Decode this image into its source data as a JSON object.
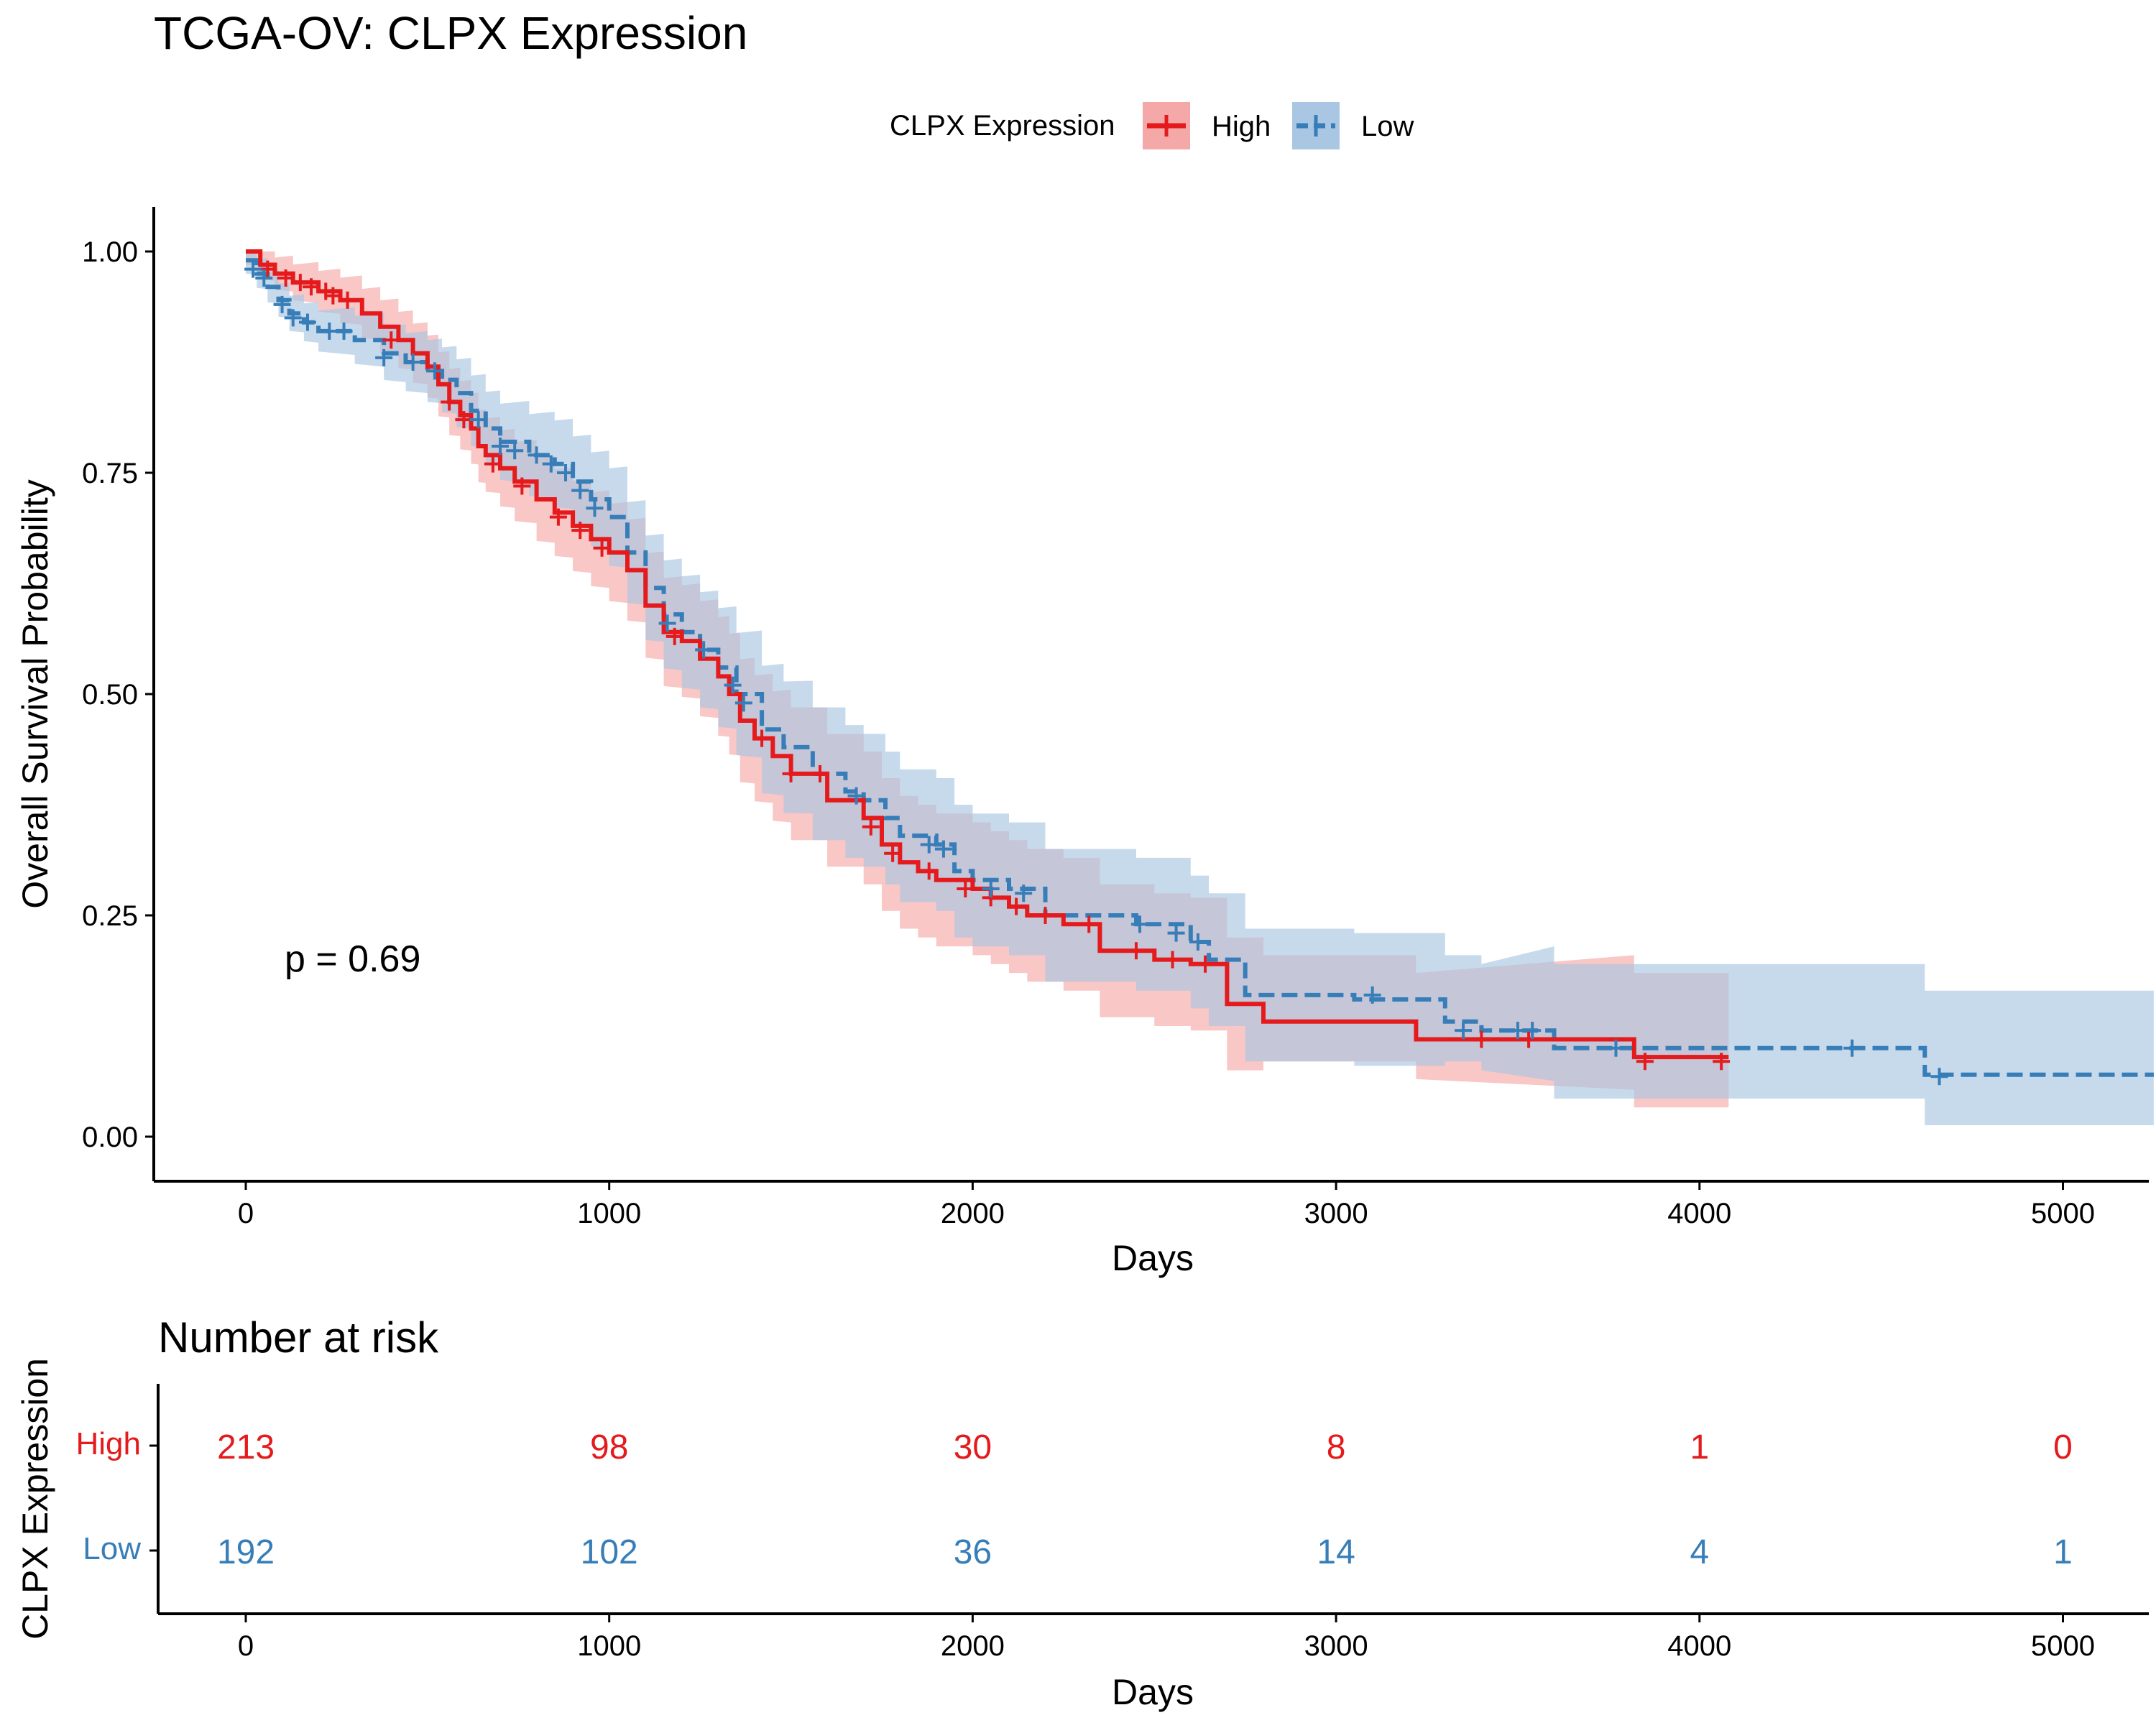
{
  "colors": {
    "high": "#E41A1C",
    "low": "#377EB8",
    "high_band": "#F4A9A8",
    "low_band": "#A9C6E2",
    "axis": "#000000",
    "text": "#000000"
  },
  "chart_data": {
    "type": "line",
    "chart_kind": "kaplan-meier",
    "title": "TCGA-OV: CLPX Expression",
    "xlabel": "Days",
    "ylabel": "Overall Survival Probability",
    "xlim": [
      -250,
      5250
    ],
    "ylim": [
      -0.05,
      1.05
    ],
    "x_ticks": [
      0,
      1000,
      2000,
      3000,
      4000,
      5000
    ],
    "x_tick_labels": [
      "0",
      "1000",
      "2000",
      "3000",
      "4000",
      "5000"
    ],
    "y_ticks": [
      0,
      0.25,
      0.5,
      0.75,
      1.0
    ],
    "y_tick_labels": [
      "0.00",
      "0.25",
      "0.50",
      "0.75",
      "1.00"
    ],
    "grid": false,
    "legend": {
      "title": "CLPX Expression",
      "position": "top",
      "entries": [
        "High",
        "Low"
      ]
    },
    "annotation": "p = 0.69",
    "annotation_pos": {
      "x": 100,
      "y": 0.2
    },
    "series": [
      {
        "name": "High",
        "color": "#E41A1C",
        "line": "solid",
        "steps": [
          [
            0,
            1.0
          ],
          [
            40,
            0.985
          ],
          [
            80,
            0.975
          ],
          [
            130,
            0.965
          ],
          [
            200,
            0.955
          ],
          [
            260,
            0.945
          ],
          [
            320,
            0.93
          ],
          [
            370,
            0.915
          ],
          [
            420,
            0.9
          ],
          [
            460,
            0.885
          ],
          [
            500,
            0.87
          ],
          [
            530,
            0.85
          ],
          [
            560,
            0.83
          ],
          [
            590,
            0.815
          ],
          [
            620,
            0.8
          ],
          [
            640,
            0.78
          ],
          [
            660,
            0.77
          ],
          [
            700,
            0.755
          ],
          [
            740,
            0.74
          ],
          [
            800,
            0.72
          ],
          [
            850,
            0.705
          ],
          [
            900,
            0.69
          ],
          [
            950,
            0.675
          ],
          [
            1000,
            0.66
          ],
          [
            1050,
            0.64
          ],
          [
            1100,
            0.6
          ],
          [
            1150,
            0.57
          ],
          [
            1200,
            0.56
          ],
          [
            1250,
            0.54
          ],
          [
            1300,
            0.52
          ],
          [
            1330,
            0.5
          ],
          [
            1360,
            0.47
          ],
          [
            1400,
            0.45
          ],
          [
            1450,
            0.43
          ],
          [
            1500,
            0.41
          ],
          [
            1600,
            0.38
          ],
          [
            1700,
            0.36
          ],
          [
            1750,
            0.33
          ],
          [
            1800,
            0.31
          ],
          [
            1850,
            0.3
          ],
          [
            1900,
            0.29
          ],
          [
            2000,
            0.28
          ],
          [
            2050,
            0.27
          ],
          [
            2100,
            0.26
          ],
          [
            2150,
            0.25
          ],
          [
            2250,
            0.24
          ],
          [
            2350,
            0.21
          ],
          [
            2500,
            0.2
          ],
          [
            2600,
            0.195
          ],
          [
            2700,
            0.15
          ],
          [
            2800,
            0.13
          ],
          [
            3220,
            0.11
          ],
          [
            3820,
            0.09
          ],
          [
            4080,
            0.09
          ]
        ],
        "censors": [
          [
            60,
            0.98
          ],
          [
            110,
            0.97
          ],
          [
            150,
            0.965
          ],
          [
            180,
            0.96
          ],
          [
            220,
            0.955
          ],
          [
            240,
            0.95
          ],
          [
            280,
            0.945
          ],
          [
            400,
            0.9
          ],
          [
            560,
            0.83
          ],
          [
            600,
            0.81
          ],
          [
            680,
            0.76
          ],
          [
            760,
            0.735
          ],
          [
            860,
            0.7
          ],
          [
            920,
            0.685
          ],
          [
            980,
            0.665
          ],
          [
            1180,
            0.565
          ],
          [
            1420,
            0.45
          ],
          [
            1500,
            0.41
          ],
          [
            1580,
            0.41
          ],
          [
            1720,
            0.35
          ],
          [
            1780,
            0.32
          ],
          [
            1880,
            0.3
          ],
          [
            1980,
            0.28
          ],
          [
            2050,
            0.27
          ],
          [
            2120,
            0.26
          ],
          [
            2200,
            0.25
          ],
          [
            2320,
            0.24
          ],
          [
            2450,
            0.21
          ],
          [
            2550,
            0.2
          ],
          [
            2640,
            0.195
          ],
          [
            3400,
            0.11
          ],
          [
            3530,
            0.11
          ],
          [
            3850,
            0.085
          ],
          [
            4060,
            0.085
          ]
        ]
      },
      {
        "name": "Low",
        "color": "#377EB8",
        "line": "dashed",
        "steps": [
          [
            0,
            0.99
          ],
          [
            30,
            0.975
          ],
          [
            60,
            0.96
          ],
          [
            90,
            0.945
          ],
          [
            120,
            0.93
          ],
          [
            160,
            0.92
          ],
          [
            200,
            0.91
          ],
          [
            300,
            0.9
          ],
          [
            380,
            0.885
          ],
          [
            440,
            0.875
          ],
          [
            500,
            0.865
          ],
          [
            540,
            0.855
          ],
          [
            580,
            0.84
          ],
          [
            620,
            0.82
          ],
          [
            660,
            0.8
          ],
          [
            700,
            0.785
          ],
          [
            780,
            0.77
          ],
          [
            850,
            0.76
          ],
          [
            900,
            0.74
          ],
          [
            950,
            0.72
          ],
          [
            1000,
            0.7
          ],
          [
            1050,
            0.66
          ],
          [
            1100,
            0.62
          ],
          [
            1150,
            0.59
          ],
          [
            1200,
            0.57
          ],
          [
            1250,
            0.55
          ],
          [
            1300,
            0.53
          ],
          [
            1350,
            0.5
          ],
          [
            1420,
            0.46
          ],
          [
            1480,
            0.44
          ],
          [
            1560,
            0.41
          ],
          [
            1650,
            0.39
          ],
          [
            1700,
            0.38
          ],
          [
            1760,
            0.36
          ],
          [
            1800,
            0.34
          ],
          [
            1900,
            0.33
          ],
          [
            1950,
            0.3
          ],
          [
            2000,
            0.29
          ],
          [
            2100,
            0.28
          ],
          [
            2200,
            0.25
          ],
          [
            2450,
            0.24
          ],
          [
            2600,
            0.22
          ],
          [
            2650,
            0.2
          ],
          [
            2750,
            0.16
          ],
          [
            3050,
            0.155
          ],
          [
            3300,
            0.13
          ],
          [
            3400,
            0.12
          ],
          [
            3600,
            0.1
          ],
          [
            4620,
            0.07
          ],
          [
            5250,
            0.07
          ]
        ],
        "censors": [
          [
            20,
            0.98
          ],
          [
            50,
            0.97
          ],
          [
            100,
            0.94
          ],
          [
            130,
            0.925
          ],
          [
            170,
            0.92
          ],
          [
            230,
            0.91
          ],
          [
            270,
            0.91
          ],
          [
            380,
            0.88
          ],
          [
            460,
            0.875
          ],
          [
            520,
            0.865
          ],
          [
            640,
            0.81
          ],
          [
            700,
            0.78
          ],
          [
            740,
            0.775
          ],
          [
            800,
            0.77
          ],
          [
            840,
            0.76
          ],
          [
            880,
            0.75
          ],
          [
            920,
            0.73
          ],
          [
            960,
            0.71
          ],
          [
            1160,
            0.58
          ],
          [
            1260,
            0.55
          ],
          [
            1340,
            0.51
          ],
          [
            1370,
            0.49
          ],
          [
            1680,
            0.385
          ],
          [
            1880,
            0.33
          ],
          [
            1920,
            0.325
          ],
          [
            2050,
            0.28
          ],
          [
            2140,
            0.275
          ],
          [
            2460,
            0.24
          ],
          [
            2560,
            0.23
          ],
          [
            2620,
            0.22
          ],
          [
            3100,
            0.16
          ],
          [
            3350,
            0.12
          ],
          [
            3500,
            0.12
          ],
          [
            3540,
            0.12
          ],
          [
            3770,
            0.1
          ],
          [
            4420,
            0.1
          ],
          [
            4660,
            0.068
          ]
        ]
      }
    ]
  },
  "risk_table": {
    "title": "Number at risk",
    "ylabel": "CLPX Expression",
    "xlabel": "Days",
    "x_ticks": [
      0,
      1000,
      2000,
      3000,
      4000,
      5000
    ],
    "x_tick_labels": [
      "0",
      "1000",
      "2000",
      "3000",
      "4000",
      "5000"
    ],
    "groups": [
      {
        "name": "High",
        "color": "#E41A1C",
        "counts": [
          "213",
          "98",
          "30",
          "8",
          "1",
          "0"
        ]
      },
      {
        "name": "Low",
        "color": "#377EB8",
        "counts": [
          "192",
          "102",
          "36",
          "14",
          "4",
          "1"
        ]
      }
    ]
  }
}
